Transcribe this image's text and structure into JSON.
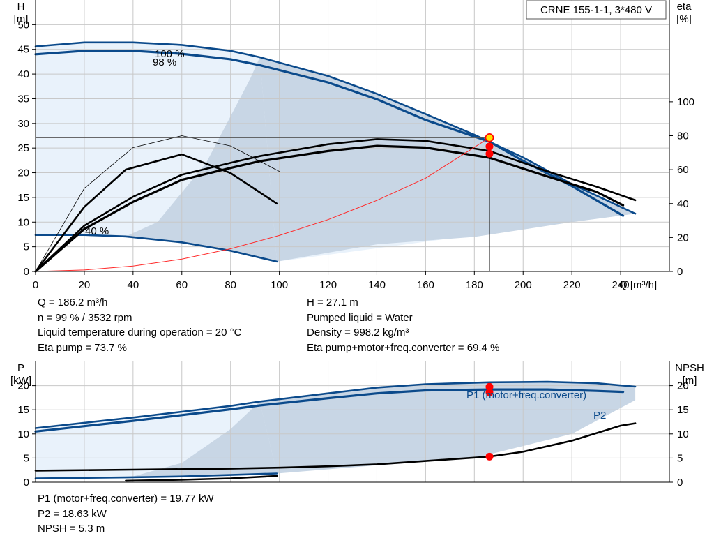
{
  "chart_data": [
    {
      "type": "line",
      "title": "CRNE 155-1-1, 3*480 V",
      "xlabel": "Q [m³/h]",
      "ylabel": "H [m]",
      "y2label": "eta [%]",
      "xlim": [
        0,
        260
      ],
      "ylim": [
        0,
        55
      ],
      "y2lim": [
        0,
        160
      ],
      "xticks": [
        0,
        20,
        40,
        60,
        80,
        100,
        120,
        140,
        160,
        180,
        200,
        220,
        240
      ],
      "yticks": [
        0,
        5,
        10,
        15,
        20,
        25,
        30,
        35,
        40,
        45,
        50
      ],
      "y2ticks": [
        0,
        20,
        40,
        60,
        80,
        100
      ],
      "grid": true,
      "speed_labels": [
        "100 %",
        "98 %",
        "40 %"
      ],
      "series": [
        {
          "points": [
            [
              0,
              45.6
            ],
            [
              20,
              46.4
            ],
            [
              40,
              46.4
            ],
            [
              60,
              45.9
            ],
            [
              80,
              44.7
            ],
            [
              92,
              43.4
            ],
            [
              120,
              39.6
            ],
            [
              140,
              36.0
            ],
            [
              160,
              31.9
            ],
            [
              180,
              27.7
            ],
            [
              200,
              23.1
            ],
            [
              220,
              17.7
            ],
            [
              246,
              11.7
            ]
          ]
        },
        {
          "points": [
            [
              0,
              44.0
            ],
            [
              20,
              44.7
            ],
            [
              40,
              44.7
            ],
            [
              60,
              44.1
            ],
            [
              80,
              43.0
            ],
            [
              92,
              41.8
            ],
            [
              120,
              38.3
            ],
            [
              140,
              34.9
            ],
            [
              160,
              30.7
            ],
            [
              186.2,
              26.3
            ],
            [
              200,
              22.4
            ],
            [
              220,
              17.3
            ],
            [
              241,
              11.3
            ]
          ]
        },
        {
          "points": [
            [
              0,
              7.4
            ],
            [
              20,
              7.4
            ],
            [
              37,
              7.1
            ],
            [
              60,
              5.9
            ],
            [
              80,
              4.2
            ],
            [
              99,
              2.0
            ]
          ]
        },
        {
          "y_axis": "eta",
          "points": [
            [
              0,
              0
            ],
            [
              20,
              27
            ],
            [
              40,
              44
            ],
            [
              60,
              57
            ],
            [
              80,
              64
            ],
            [
              92,
              68
            ],
            [
              120,
              75
            ],
            [
              140,
              78
            ],
            [
              160,
              77
            ],
            [
              186.2,
              71
            ],
            [
              210,
              59
            ],
            [
              230,
              50
            ],
            [
              246,
              42
            ]
          ]
        },
        {
          "y_axis": "eta",
          "points": [
            [
              0,
              0
            ],
            [
              20,
              25
            ],
            [
              40,
              41
            ],
            [
              60,
              54
            ],
            [
              80,
              61
            ],
            [
              92,
              65
            ],
            [
              120,
              71
            ],
            [
              140,
              74
            ],
            [
              160,
              73
            ],
            [
              186.2,
              67
            ],
            [
              210,
              56
            ],
            [
              230,
              47
            ],
            [
              241,
              39
            ]
          ]
        },
        {
          "y_axis": "eta",
          "points": [
            [
              0,
              0
            ],
            [
              20,
              38
            ],
            [
              37,
              60
            ],
            [
              60,
              69
            ],
            [
              80,
              58
            ],
            [
              99,
              40
            ]
          ]
        },
        {
          "y_axis": "eta",
          "points": [
            [
              0,
              0
            ],
            [
              20,
              49
            ],
            [
              40,
              73
            ],
            [
              60,
              80
            ],
            [
              80,
              74
            ],
            [
              100,
              59
            ]
          ]
        },
        {
          "points": [
            [
              0,
              0
            ],
            [
              20,
              0.3
            ],
            [
              40,
              1.1
            ],
            [
              60,
              2.5
            ],
            [
              80,
              4.6
            ],
            [
              100,
              7.3
            ],
            [
              120,
              10.5
            ],
            [
              140,
              14.4
            ],
            [
              160,
              18.9
            ],
            [
              186.2,
              27.1
            ]
          ]
        }
      ],
      "operating_point": {
        "x": 186.2,
        "y": 27.1
      },
      "eta_points": [
        [
          186.2,
          73.7
        ],
        [
          186.2,
          69.4
        ]
      ]
    },
    {
      "type": "line",
      "xlabel": "",
      "ylabel": "P [kW]",
      "y2label": "NPSH [m]",
      "xlim": [
        0,
        260
      ],
      "ylim": [
        0,
        25
      ],
      "y2lim": [
        0,
        25
      ],
      "yticks": [
        0,
        5,
        10,
        15,
        20
      ],
      "y2ticks": [
        0,
        5,
        10,
        15,
        20
      ],
      "grid": true,
      "series": [
        {
          "name": "P1 (motor+freq.converter)",
          "points": [
            [
              0,
              11.2
            ],
            [
              20,
              12.3
            ],
            [
              40,
              13.4
            ],
            [
              60,
              14.6
            ],
            [
              80,
              15.8
            ],
            [
              92,
              16.7
            ],
            [
              120,
              18.4
            ],
            [
              140,
              19.6
            ],
            [
              160,
              20.3
            ],
            [
              186.2,
              20.7
            ],
            [
              210,
              20.8
            ],
            [
              230,
              20.5
            ],
            [
              246,
              19.8
            ]
          ]
        },
        {
          "name": "P2",
          "points": [
            [
              0,
              10.5
            ],
            [
              20,
              11.6
            ],
            [
              40,
              12.7
            ],
            [
              60,
              13.9
            ],
            [
              80,
              15.1
            ],
            [
              92,
              15.9
            ],
            [
              120,
              17.4
            ],
            [
              140,
              18.4
            ],
            [
              160,
              19.0
            ],
            [
              186.2,
              19.2
            ],
            [
              210,
              19.2
            ],
            [
              230,
              18.9
            ],
            [
              241,
              18.7
            ]
          ]
        },
        {
          "points": [
            [
              0,
              0.8
            ],
            [
              20,
              0.9
            ],
            [
              37,
              1.0
            ],
            [
              60,
              1.2
            ],
            [
              80,
              1.5
            ],
            [
              99,
              1.8
            ]
          ]
        },
        {
          "y_axis": "NPSH",
          "points": [
            [
              0,
              2.4
            ],
            [
              40,
              2.6
            ],
            [
              80,
              2.8
            ],
            [
              100,
              3.0
            ],
            [
              120,
              3.3
            ],
            [
              140,
              3.7
            ],
            [
              160,
              4.4
            ],
            [
              186.2,
              5.3
            ],
            [
              200,
              6.3
            ],
            [
              220,
              8.6
            ],
            [
              240,
              11.7
            ],
            [
              246,
              12.2
            ]
          ]
        },
        {
          "y_axis": "NPSH",
          "points": [
            [
              37,
              0.3
            ],
            [
              60,
              0.5
            ],
            [
              80,
              0.8
            ],
            [
              99,
              1.3
            ]
          ]
        }
      ],
      "points": [
        [
          186.2,
          19.77
        ],
        [
          186.2,
          18.63
        ],
        [
          186.2,
          5.3
        ]
      ]
    }
  ],
  "info": {
    "left": [
      "Q = 186.2 m³/h",
      "n = 99 % / 3532 rpm",
      "Liquid temperature during operation = 20 °C",
      "Eta pump = 73.7 %"
    ],
    "right": [
      "H = 27.1 m",
      "Pumped liquid = Water",
      "Density = 998.2 kg/m³",
      "Eta pump+motor+freq.converter = 69.4 %"
    ],
    "bottom": [
      "P1 (motor+freq.converter) = 19.77 kW",
      "P2 = 18.63 kW",
      "NPSH = 5.3 m"
    ]
  },
  "colors": {
    "blue": "#0b4a8b",
    "region": "#c8d6e5",
    "region_light": "#e9f2fb",
    "system_curve": "#ff2a2a",
    "point": "#ff0000",
    "grid": "#c8c8c8"
  }
}
